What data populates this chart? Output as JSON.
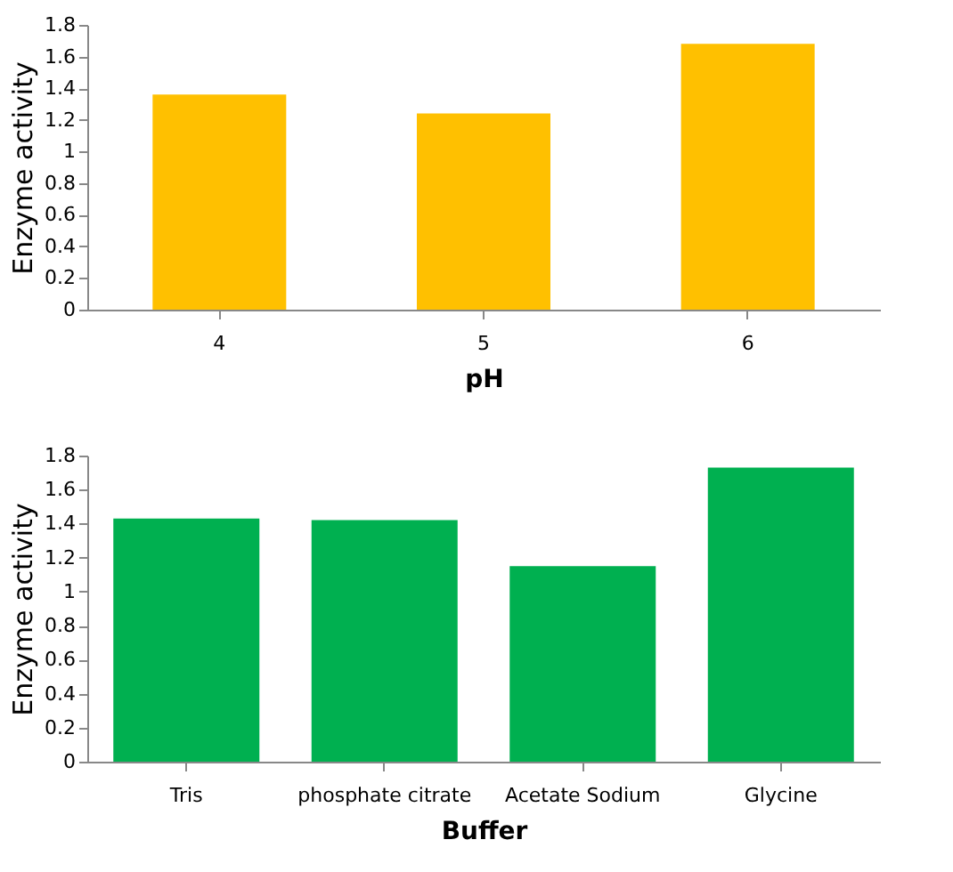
{
  "chart_data": [
    {
      "type": "bar",
      "xlabel": "pH",
      "ylabel": "Enzyme activity",
      "categories": [
        "4",
        "5",
        "6"
      ],
      "values": [
        1.36,
        1.24,
        1.68
      ],
      "color": "#ffc000",
      "ylim": [
        0,
        1.8
      ],
      "yticks": [
        0,
        0.2,
        0.4,
        0.6,
        0.8,
        1,
        1.2,
        1.4,
        1.6,
        1.8
      ],
      "grid": false
    },
    {
      "type": "bar",
      "xlabel": "Buffer",
      "ylabel": "Enzyme activity",
      "categories": [
        "Tris",
        "phosphate citrate",
        "Acetate Sodium",
        "Glycine"
      ],
      "values": [
        1.43,
        1.42,
        1.15,
        1.73
      ],
      "color": "#00b050",
      "ylim": [
        0,
        1.8
      ],
      "yticks": [
        0,
        0.2,
        0.4,
        0.6,
        0.8,
        1,
        1.2,
        1.4,
        1.6,
        1.8
      ],
      "grid": false
    }
  ]
}
